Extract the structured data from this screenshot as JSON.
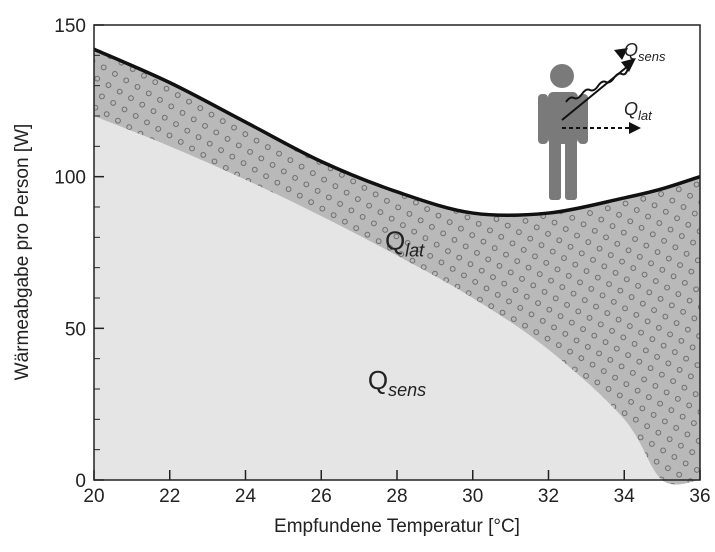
{
  "chart_data": {
    "type": "stacked_area",
    "xlabel": "Empfundene Temperatur [°C]",
    "ylabel": "Wärmeabgabe pro Person [W]",
    "x": [
      20,
      22,
      24,
      26,
      28,
      30,
      32,
      34,
      35,
      36
    ],
    "series": [
      {
        "color": "#e5e5e5",
        "values": [
          120,
          110,
          99,
          87,
          74,
          60,
          43,
          20,
          0,
          0
        ]
      },
      {
        "color": "#b9b9b9",
        "values": [
          22,
          21,
          19,
          18,
          21,
          28,
          45,
          73,
          96,
          100
        ]
      }
    ],
    "line_color": "#111111",
    "xlim": [
      20,
      36
    ],
    "ylim": [
      0,
      150
    ],
    "xticks": [
      20,
      22,
      24,
      26,
      28,
      30,
      32,
      34,
      36
    ],
    "yticks": [
      0,
      50,
      100,
      150
    ],
    "yticks_minor": [
      10,
      20,
      30,
      40,
      60,
      70,
      80,
      90,
      110,
      120,
      130,
      140
    ],
    "annotations": [
      {
        "text": "Q",
        "sub": "lat",
        "x": 28.2,
        "y": 76
      },
      {
        "text": "Q",
        "sub": "sens",
        "x": 28,
        "y": 30
      }
    ],
    "icon_labels": [
      {
        "text": "Q",
        "sub": "sens"
      },
      {
        "text": "Q",
        "sub": "lat"
      }
    ]
  }
}
